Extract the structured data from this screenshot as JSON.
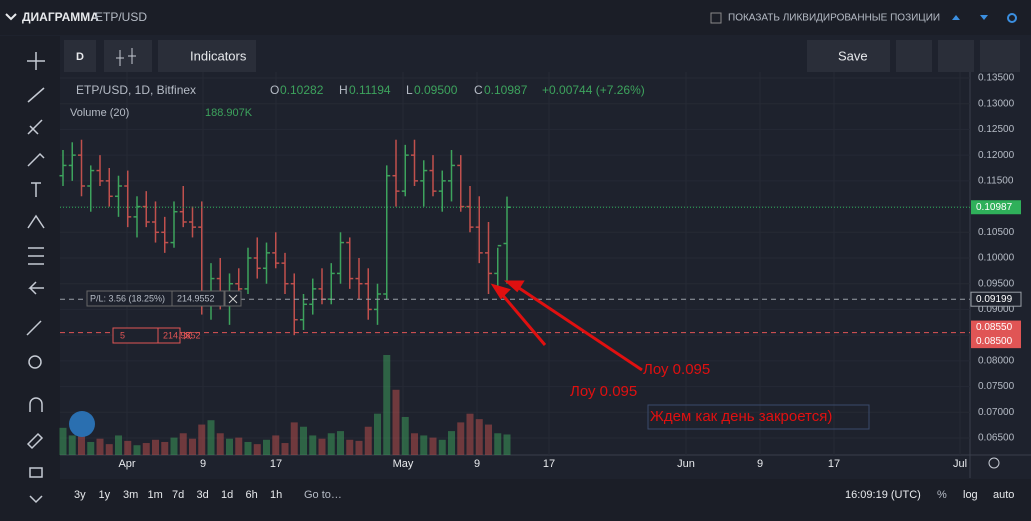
{
  "header": {
    "title": "ДИАГРАММА",
    "symbol": "ETP/USD",
    "checkbox": "ПОКАЗАТЬ ЛИКВИДИРОВАННЫЕ ПОЗИЦИИ"
  },
  "toolbar": {
    "interval": "D",
    "indicators": "Indicators",
    "save": "Save"
  },
  "legend": {
    "symbol": "ETP/USD, 1D, Bitfinex",
    "o_label": "O",
    "o": "0.10282",
    "h_label": "H",
    "h": "0.11194",
    "l_label": "L",
    "l": "0.09500",
    "c_label": "C",
    "c": "0.10987",
    "change": "+0.00744 (+7.26%)",
    "volume": "Volume (20)",
    "volume_value": "188.907K"
  },
  "chart_data": {
    "type": "candlestick",
    "open": [
      0.116,
      0.118,
      0.12,
      0.114,
      0.117,
      0.115,
      0.112,
      0.114,
      0.108,
      0.11,
      0.107,
      0.105,
      0.103,
      0.109,
      0.107,
      0.106,
      0.092,
      0.096,
      0.091,
      0.095,
      0.094,
      0.1,
      0.098,
      0.101,
      0.099,
      0.095,
      0.088,
      0.091,
      0.094,
      0.092,
      0.097,
      0.103,
      0.096,
      0.095,
      0.09,
      0.093,
      0.116,
      0.113,
      0.12,
      0.115,
      0.117,
      0.113,
      0.115,
      0.118,
      0.11,
      0.106,
      0.101,
      0.097,
      0.10282
    ],
    "high": [
      0.121,
      0.1225,
      0.123,
      0.118,
      0.12,
      0.1175,
      0.116,
      0.117,
      0.112,
      0.113,
      0.111,
      0.108,
      0.111,
      0.114,
      0.11,
      0.111,
      0.099,
      0.1,
      0.097,
      0.098,
      0.102,
      0.104,
      0.103,
      0.105,
      0.101,
      0.097,
      0.093,
      0.096,
      0.098,
      0.099,
      0.105,
      0.104,
      0.1,
      0.098,
      0.095,
      0.118,
      0.123,
      0.122,
      0.123,
      0.119,
      0.12,
      0.117,
      0.121,
      0.12,
      0.114,
      0.112,
      0.107,
      0.102,
      0.11194
    ],
    "low": [
      0.114,
      0.115,
      0.112,
      0.109,
      0.114,
      0.11,
      0.108,
      0.106,
      0.104,
      0.106,
      0.103,
      0.101,
      0.102,
      0.106,
      0.104,
      0.089,
      0.088,
      0.09,
      0.087,
      0.092,
      0.093,
      0.096,
      0.095,
      0.098,
      0.093,
      0.085,
      0.086,
      0.089,
      0.091,
      0.091,
      0.095,
      0.094,
      0.092,
      0.088,
      0.087,
      0.092,
      0.11,
      0.112,
      0.114,
      0.11,
      0.112,
      0.109,
      0.111,
      0.109,
      0.105,
      0.099,
      0.093,
      0.094,
      0.095
    ],
    "close": [
      0.118,
      0.12,
      0.114,
      0.117,
      0.115,
      0.112,
      0.114,
      0.108,
      0.11,
      0.107,
      0.105,
      0.103,
      0.109,
      0.107,
      0.106,
      0.092,
      0.096,
      0.091,
      0.095,
      0.094,
      0.1,
      0.098,
      0.101,
      0.099,
      0.095,
      0.088,
      0.091,
      0.094,
      0.092,
      0.097,
      0.103,
      0.096,
      0.095,
      0.09,
      0.093,
      0.116,
      0.113,
      0.12,
      0.115,
      0.117,
      0.113,
      0.115,
      0.118,
      0.11,
      0.106,
      0.101,
      0.097,
      0.1024,
      0.10987
    ],
    "volume": [
      250,
      180,
      200,
      120,
      150,
      100,
      180,
      130,
      90,
      110,
      140,
      120,
      160,
      200,
      150,
      280,
      320,
      200,
      150,
      160,
      120,
      100,
      140,
      180,
      110,
      300,
      260,
      180,
      150,
      200,
      220,
      140,
      130,
      260,
      380,
      920,
      600,
      350,
      200,
      180,
      160,
      140,
      220,
      300,
      380,
      330,
      280,
      200,
      188.907
    ],
    "x_labels": [
      "Apr",
      "9",
      "17",
      "May",
      "9",
      "17",
      "Jun",
      "9",
      "17",
      "Jul"
    ],
    "ylim": [
      0.065,
      0.135
    ],
    "yticks": [
      {
        "value": 0.065,
        "label": "0.06500"
      },
      {
        "value": 0.07,
        "label": "0.07000"
      },
      {
        "value": 0.075,
        "label": "0.07500"
      },
      {
        "value": 0.08,
        "label": "0.08000"
      },
      {
        "value": 0.085,
        "label": "0.08500"
      },
      {
        "value": 0.09,
        "label": "0.09000"
      },
      {
        "value": 0.095,
        "label": "0.09500"
      },
      {
        "value": 0.1,
        "label": "0.10000"
      },
      {
        "value": 0.105,
        "label": "0.10500"
      },
      {
        "value": 0.11,
        "label": "0.11000"
      },
      {
        "value": 0.115,
        "label": "0.11500"
      },
      {
        "value": 0.12,
        "label": "0.12000"
      },
      {
        "value": 0.125,
        "label": "0.12500"
      },
      {
        "value": 0.13,
        "label": "0.13000"
      },
      {
        "value": 0.135,
        "label": "0.13500"
      }
    ],
    "up_color": "#3da35d",
    "down_color": "#c0504d",
    "price_lines": [
      {
        "value": 0.10987,
        "label": "0.10987",
        "color": "#2fb05a"
      },
      {
        "value": 0.09199,
        "label": "0.09199",
        "color": "#9aa0a8"
      },
      {
        "value": 0.0855,
        "label": "0.08550",
        "color": "#e05555"
      },
      {
        "value": 0.085,
        "label": "0.08500",
        "color": "#e05555"
      }
    ]
  },
  "positions": {
    "pl": "P/L: 3.56 (18.25%)",
    "pl_amount": "214.9552",
    "order_qty": "5",
    "order_amount": "214.9552"
  },
  "annotations": [
    "Лоу 0.095",
    "Лоу 0.095",
    "Ждем как день закроется)"
  ],
  "footer": {
    "ranges": [
      "3y",
      "1y",
      "3m",
      "1m",
      "7d",
      "3d",
      "1d",
      "6h",
      "1h"
    ],
    "goto": "Go to…",
    "time": "16:09:19 (UTC)",
    "percent": "%",
    "log": "log",
    "auto": "auto"
  }
}
